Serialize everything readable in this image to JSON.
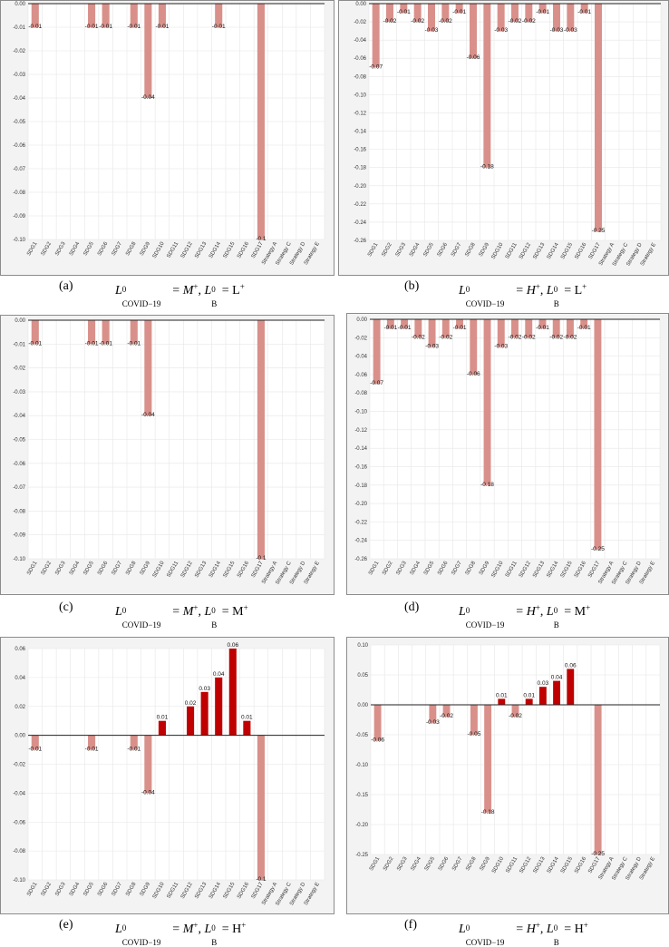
{
  "colors": {
    "negative": "#d9908a",
    "positive": "#c00000",
    "frame": "#f3f3f3"
  },
  "panels": [
    {
      "letter": "(a)",
      "formula": {
        "sub_label": "COVID−19",
        "sup": "0",
        "covid_level": "M",
        "b_sub": "B",
        "b_level": "L",
        "plus": "+"
      },
      "chart_data": {
        "type": "bar",
        "categories": [
          "SDG1",
          "SDG2",
          "SDG3",
          "SDG4",
          "SDG5",
          "SDG6",
          "SDG7",
          "SDG8",
          "SDG9",
          "SDG10",
          "SDG11",
          "SDG12",
          "SDG13",
          "SDG14",
          "SDG15",
          "SDG16",
          "SDG17",
          "Strategy A",
          "Strategy C",
          "Strategy D",
          "Strategy E"
        ],
        "values": [
          -0.01,
          0,
          0,
          0,
          -0.01,
          -0.01,
          0,
          -0.01,
          -0.04,
          -0.01,
          0,
          0,
          0,
          -0.01,
          0,
          0,
          -0.1,
          0,
          0,
          0,
          0
        ],
        "value_labels": [
          "-0.01",
          "",
          "",
          "",
          "-0.01",
          "-0.01",
          "",
          "-0.01",
          "-0.04",
          "-0.01",
          "",
          "",
          "",
          "-0.01",
          "",
          "",
          "-0.1",
          "",
          "",
          "",
          ""
        ],
        "ylim": [
          -0.1,
          0
        ],
        "yticks": [
          "0.00",
          "-0.01",
          "-0.02",
          "-0.03",
          "-0.04",
          "-0.05",
          "-0.06",
          "-0.07",
          "-0.08",
          "-0.09",
          "-0.10"
        ],
        "ytick_values": [
          0,
          -0.01,
          -0.02,
          -0.03,
          -0.04,
          -0.05,
          -0.06,
          -0.07,
          -0.08,
          -0.09,
          -0.1
        ],
        "title": "",
        "xlabel": "",
        "ylabel": ""
      }
    },
    {
      "letter": "(b)",
      "formula": {
        "sub_label": "COVID−19",
        "sup": "0",
        "covid_level": "H",
        "b_sub": "B",
        "b_level": "L",
        "plus": "+"
      },
      "chart_data": {
        "type": "bar",
        "categories": [
          "SDG1",
          "SDG2",
          "SDG3",
          "SDG4",
          "SDG5",
          "SDG6",
          "SDG7",
          "SDG8",
          "SDG9",
          "SDG10",
          "SDG11",
          "SDG12",
          "SDG13",
          "SDG14",
          "SDG15",
          "SDG16",
          "SDG17",
          "Strategy A",
          "Strategy C",
          "Strategy D",
          "Strategy E"
        ],
        "values": [
          -0.07,
          -0.02,
          -0.01,
          -0.02,
          -0.03,
          -0.02,
          -0.01,
          -0.06,
          -0.18,
          -0.03,
          -0.02,
          -0.02,
          -0.01,
          -0.03,
          -0.03,
          -0.01,
          -0.25,
          0,
          0,
          0,
          0
        ],
        "value_labels": [
          "-0.07",
          "-0.02",
          "-0.01",
          "-0.02",
          "-0.03",
          "-0.02",
          "-0.01",
          "-0.06",
          "-0.18",
          "-0.03",
          "-0.02",
          "-0.02",
          "-0.01",
          "-0.03",
          "-0.03",
          "-0.01",
          "-0.25",
          "",
          "",
          "",
          ""
        ],
        "ylim": [
          -0.26,
          0
        ],
        "yticks": [
          "0.00",
          "-0.02",
          "-0.04",
          "-0.06",
          "-0.08",
          "-0.10",
          "-0.12",
          "-0.14",
          "-0.16",
          "-0.18",
          "-0.20",
          "-0.22",
          "-0.24",
          "-0.26"
        ],
        "ytick_values": [
          0,
          -0.02,
          -0.04,
          -0.06,
          -0.08,
          -0.1,
          -0.12,
          -0.14,
          -0.16,
          -0.18,
          -0.2,
          -0.22,
          -0.24,
          -0.26
        ],
        "title": "",
        "xlabel": "",
        "ylabel": ""
      }
    },
    {
      "letter": "(c)",
      "formula": {
        "sub_label": "COVID−19",
        "sup": "0",
        "covid_level": "M",
        "b_sub": "B",
        "b_level": "M",
        "plus": "+"
      },
      "chart_data": {
        "type": "bar",
        "categories": [
          "SDG1",
          "SDG2",
          "SDG3",
          "SDG4",
          "SDG5",
          "SDG6",
          "SDG7",
          "SDG8",
          "SDG9",
          "SDG10",
          "SDG11",
          "SDG12",
          "SDG13",
          "SDG14",
          "SDG15",
          "SDG16",
          "SDG17",
          "Strategy A",
          "Strategy C",
          "Strategy D",
          "Strategy E"
        ],
        "values": [
          -0.01,
          0,
          0,
          0,
          -0.01,
          -0.01,
          0,
          -0.01,
          -0.04,
          0,
          0,
          0,
          0,
          0,
          0,
          0,
          -0.1,
          0,
          0,
          0,
          0
        ],
        "value_labels": [
          "-0.01",
          "",
          "",
          "",
          "-0.01",
          "-0.01",
          "",
          "-0.01",
          "-0.04",
          "",
          "",
          "",
          "",
          "",
          "",
          "",
          "-0.1",
          "",
          "",
          "",
          ""
        ],
        "ylim": [
          -0.1,
          0
        ],
        "yticks": [
          "0.00",
          "-0.01",
          "-0.02",
          "-0.03",
          "-0.04",
          "-0.05",
          "-0.06",
          "-0.07",
          "-0.08",
          "-0.09",
          "-0.10"
        ],
        "ytick_values": [
          0,
          -0.01,
          -0.02,
          -0.03,
          -0.04,
          -0.05,
          -0.06,
          -0.07,
          -0.08,
          -0.09,
          -0.1
        ],
        "title": "",
        "xlabel": "",
        "ylabel": ""
      }
    },
    {
      "letter": "(d)",
      "formula": {
        "sub_label": "COVID−19",
        "sup": "0",
        "covid_level": "H",
        "b_sub": "B",
        "b_level": "M",
        "plus": "+"
      },
      "chart_data": {
        "type": "bar",
        "categories": [
          "SDG1",
          "SDG2",
          "SDG3",
          "SDG4",
          "SDG5",
          "SDG6",
          "SDG7",
          "SDG8",
          "SDG9",
          "SDG10",
          "SDG11",
          "SDG12",
          "SDG13",
          "SDG14",
          "SDG15",
          "SDG16",
          "SDG17",
          "Strategy A",
          "Strategy C",
          "Strategy D",
          "Strategy E"
        ],
        "values": [
          -0.07,
          -0.01,
          -0.01,
          -0.02,
          -0.03,
          -0.02,
          -0.01,
          -0.06,
          -0.18,
          -0.03,
          -0.02,
          -0.02,
          -0.01,
          -0.02,
          -0.02,
          -0.01,
          -0.25,
          0,
          0,
          0,
          0
        ],
        "value_labels": [
          "-0.07",
          "-0.01",
          "-0.01",
          "-0.02",
          "-0.03",
          "-0.02",
          "-0.01",
          "-0.06",
          "-0.18",
          "-0.03",
          "-0.02",
          "-0.02",
          "-0.01",
          "-0.02",
          "-0.02",
          "-0.01",
          "-0.25",
          "",
          "",
          "",
          ""
        ],
        "ylim": [
          -0.26,
          0
        ],
        "yticks": [
          "0.00",
          "-0.02",
          "-0.04",
          "-0.06",
          "-0.08",
          "-0.10",
          "-0.12",
          "-0.14",
          "-0.16",
          "-0.18",
          "-0.20",
          "-0.22",
          "-0.24",
          "-0.26"
        ],
        "ytick_values": [
          0,
          -0.02,
          -0.04,
          -0.06,
          -0.08,
          -0.1,
          -0.12,
          -0.14,
          -0.16,
          -0.18,
          -0.2,
          -0.22,
          -0.24,
          -0.26
        ],
        "title": "",
        "xlabel": "",
        "ylabel": ""
      }
    },
    {
      "letter": "(e)",
      "formula": {
        "sub_label": "COVID−19",
        "sup": "0",
        "covid_level": "M",
        "b_sub": "B",
        "b_level": "H",
        "plus": "+"
      },
      "chart_data": {
        "type": "bar",
        "categories": [
          "SDG1",
          "SDG2",
          "SDG3",
          "SDG4",
          "SDG5",
          "SDG6",
          "SDG7",
          "SDG8",
          "SDG9",
          "SDG10",
          "SDG11",
          "SDG12",
          "SDG13",
          "SDG14",
          "SDG15",
          "SDG16",
          "SDG17",
          "Strategy A",
          "Strategy C",
          "Strategy D",
          "Strategy E"
        ],
        "values": [
          -0.01,
          0,
          0,
          0,
          -0.01,
          0,
          0,
          -0.01,
          -0.04,
          0.01,
          0,
          0.02,
          0.03,
          0.04,
          0.06,
          0.01,
          -0.1,
          0,
          0,
          0,
          0
        ],
        "value_labels": [
          "-0.01",
          "",
          "",
          "",
          "-0.01",
          "",
          "",
          "-0.01",
          "-0.04",
          "0.01",
          "",
          "0.02",
          "0.03",
          "0.04",
          "0.06",
          "0.01",
          "-0.1",
          "",
          "",
          "",
          ""
        ],
        "ylim": [
          -0.1,
          0.06
        ],
        "yticks": [
          "0.06",
          "0.04",
          "0.02",
          "0.00",
          "-0.02",
          "-0.04",
          "-0.06",
          "-0.08",
          "-0.10"
        ],
        "ytick_values": [
          0.06,
          0.04,
          0.02,
          0,
          -0.02,
          -0.04,
          -0.06,
          -0.08,
          -0.1
        ],
        "title": "",
        "xlabel": "",
        "ylabel": ""
      }
    },
    {
      "letter": "(f)",
      "formula": {
        "sub_label": "COVID−19",
        "sup": "0",
        "covid_level": "H",
        "b_sub": "B",
        "b_level": "H",
        "plus": "+"
      },
      "chart_data": {
        "type": "bar",
        "categories": [
          "SDG1",
          "SDG2",
          "SDG3",
          "SDG4",
          "SDG5",
          "SDG6",
          "SDG7",
          "SDG8",
          "SDG9",
          "SDG10",
          "SDG11",
          "SDG12",
          "SDG13",
          "SDG14",
          "SDG15",
          "SDG16",
          "SDG17",
          "Strategy A",
          "Strategy C",
          "Strategy D",
          "Strategy E"
        ],
        "values": [
          -0.06,
          0,
          0,
          0,
          -0.03,
          -0.02,
          0,
          -0.05,
          -0.18,
          0.01,
          -0.02,
          0.01,
          0.03,
          0.04,
          0.06,
          0,
          -0.25,
          0,
          0,
          0,
          0
        ],
        "value_labels": [
          "-0.06",
          "",
          "",
          "",
          "-0.03",
          "-0.02",
          "",
          "-0.05",
          "-0.18",
          "0.01",
          "-0.02",
          "0.01",
          "0.03",
          "0.04",
          "0.06",
          "",
          "-0.25",
          "",
          "",
          "",
          ""
        ],
        "ylim": [
          -0.25,
          0.1
        ],
        "yticks": [
          "0.10",
          "0.05",
          "0.00",
          "-0.05",
          "-0.10",
          "-0.15",
          "-0.20",
          "-0.25"
        ],
        "ytick_values": [
          0.1,
          0.05,
          0,
          -0.05,
          -0.1,
          -0.15,
          -0.2,
          -0.25
        ],
        "title": "",
        "xlabel": "",
        "ylabel": ""
      }
    }
  ]
}
